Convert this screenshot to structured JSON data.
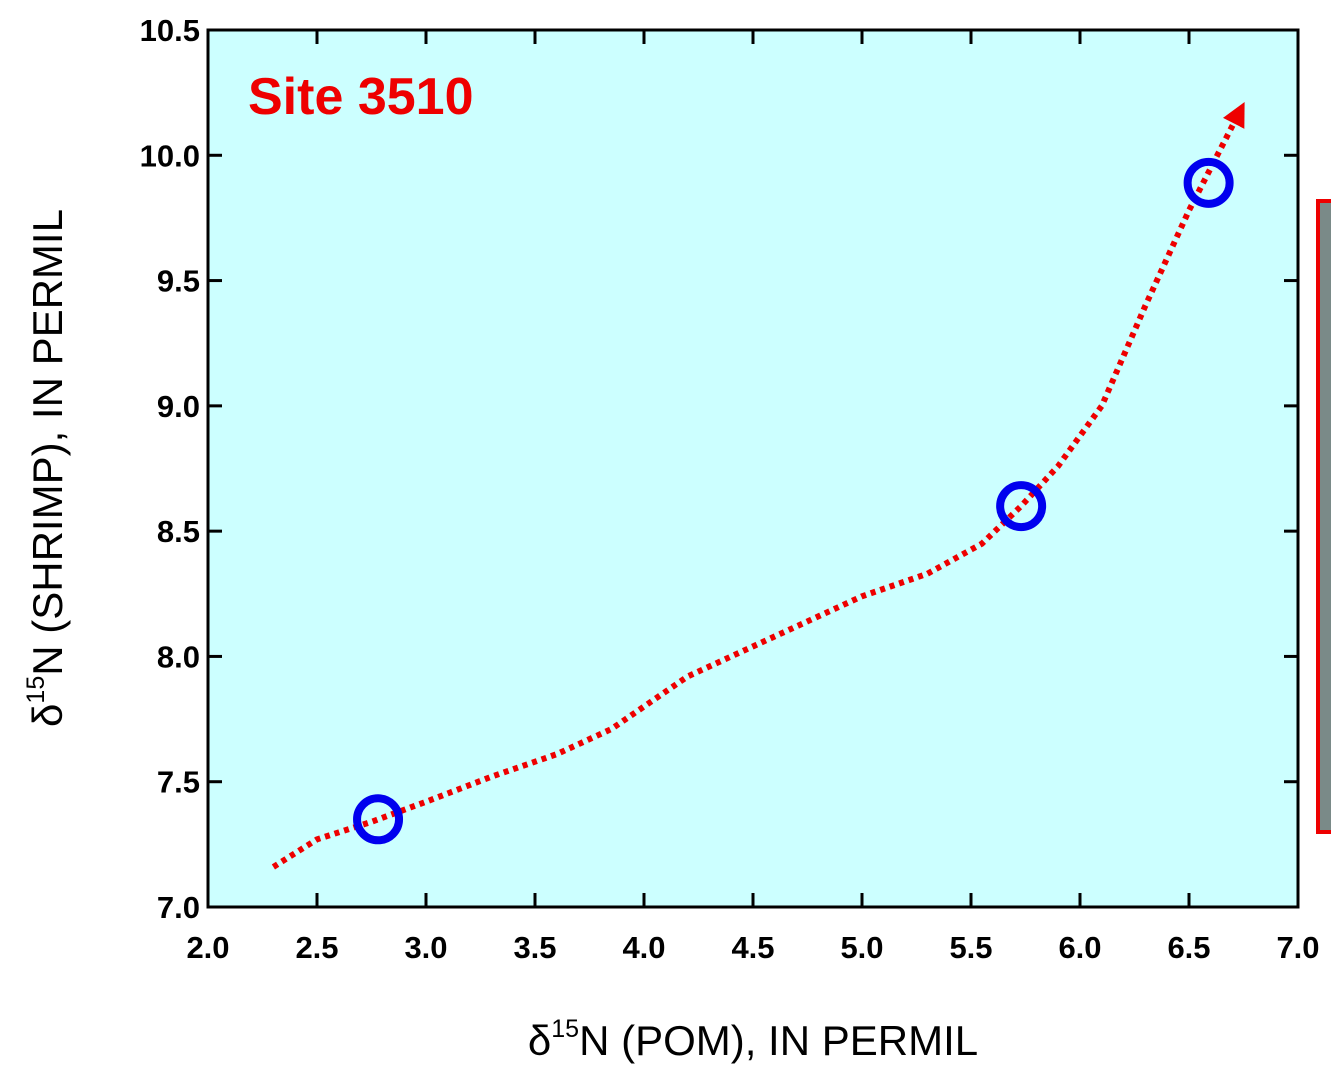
{
  "chart_data": {
    "type": "scatter",
    "annotation": "Site 3510",
    "x_label": {
      "symbol": "δ",
      "superscript": "15",
      "text": "N (POM), IN PERMIL"
    },
    "y_label": {
      "symbol": "δ",
      "superscript": "15",
      "text": "N (SHRIMP), IN PERMIL"
    },
    "xlim": [
      2.0,
      7.0
    ],
    "ylim": [
      7.0,
      10.5
    ],
    "xticks": [
      {
        "value": 2.0,
        "label": "2.0"
      },
      2.5,
      {
        "value": 3.0,
        "label": "3.0"
      },
      3.5,
      {
        "value": 4.0,
        "label": "4.0"
      },
      4.5,
      {
        "value": 5.0,
        "label": "5.0"
      },
      5.5,
      {
        "value": 6.0,
        "label": "6.0"
      },
      6.5,
      {
        "value": 7.0,
        "label": "7.0"
      }
    ],
    "yticks": [
      {
        "value": 7.0,
        "label": "7.0"
      },
      7.5,
      {
        "value": 8.0,
        "label": "8.0"
      },
      8.5,
      {
        "value": 9.0,
        "label": "9.0"
      },
      9.5,
      {
        "value": 10.0,
        "label": "10.0"
      },
      10.5
    ],
    "background": "#ccffff",
    "series": [
      {
        "style": "circle",
        "color": "#0000ee",
        "x": [
          2.78,
          5.73,
          6.59
        ],
        "values": [
          7.35,
          8.6,
          9.89
        ]
      },
      {
        "style": "dotted-arrow",
        "color": "#ee0000",
        "x": [
          2.3,
          2.5,
          2.75,
          3.0,
          3.3,
          3.6,
          3.85,
          4.2,
          4.6,
          5.0,
          5.3,
          5.55,
          5.73,
          5.9,
          6.1,
          6.3,
          6.5,
          6.73
        ],
        "values": [
          7.16,
          7.27,
          7.34,
          7.42,
          7.52,
          7.61,
          7.71,
          7.92,
          8.08,
          8.24,
          8.33,
          8.45,
          8.6,
          8.76,
          9.0,
          9.4,
          9.78,
          10.17
        ]
      }
    ]
  }
}
